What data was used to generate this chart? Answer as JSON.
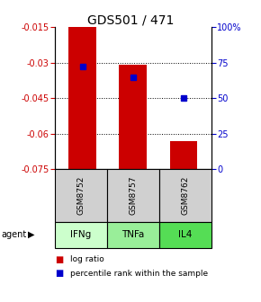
{
  "title": "GDS501 / 471",
  "samples": [
    "GSM8752",
    "GSM8757",
    "GSM8762"
  ],
  "agents": [
    "IFNg",
    "TNFa",
    "IL4"
  ],
  "log_ratios": [
    -0.015,
    -0.031,
    -0.063
  ],
  "percentile_ranks": [
    72.0,
    65.0,
    50.0
  ],
  "bar_bottom": -0.075,
  "ylim_left": [
    -0.075,
    -0.015
  ],
  "ylim_right": [
    0,
    100
  ],
  "yticks_left": [
    -0.075,
    -0.06,
    -0.045,
    -0.03,
    -0.015
  ],
  "yticks_right": [
    0,
    25,
    50,
    75,
    100
  ],
  "ytick_labels_left": [
    "-0.075",
    "-0.06",
    "-0.045",
    "-0.03",
    "-0.015"
  ],
  "ytick_labels_right": [
    "0",
    "25",
    "50",
    "75",
    "100%"
  ],
  "bar_color": "#cc0000",
  "marker_color": "#0000cc",
  "agent_colors": [
    "#ccffcc",
    "#99ee99",
    "#55dd55"
  ],
  "sample_bg_color": "#d0d0d0",
  "left_axis_color": "#cc0000",
  "right_axis_color": "#0000cc",
  "legend_labels": [
    "log ratio",
    "percentile rank within the sample"
  ]
}
